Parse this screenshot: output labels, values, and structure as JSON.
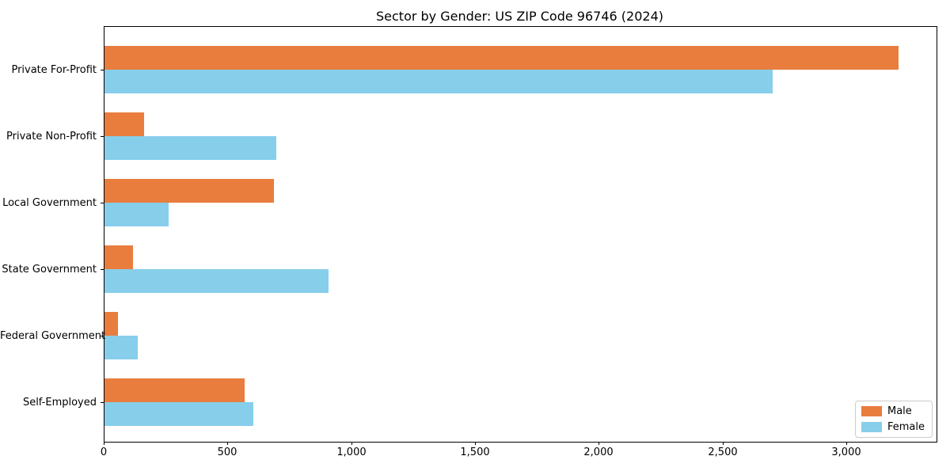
{
  "title": "Sector by Gender: US ZIP Code 96746 (2024)",
  "chart_data": {
    "type": "bar",
    "orientation": "horizontal",
    "title": "Sector by Gender: US ZIP Code 96746 (2024)",
    "xlabel": "",
    "ylabel": "",
    "categories": [
      "Private For-Profit",
      "Private Non-Profit",
      "Local Government",
      "State Government",
      "Federal Government",
      "Self-Employed"
    ],
    "series": [
      {
        "name": "Male",
        "color": "#e87d3e",
        "values": [
          3210,
          160,
          685,
          115,
          55,
          565
        ]
      },
      {
        "name": "Female",
        "color": "#87ceeb",
        "values": [
          2700,
          695,
          260,
          905,
          135,
          600
        ]
      }
    ],
    "xlim": [
      0,
      3362
    ],
    "xticks": [
      0,
      500,
      1000,
      1500,
      2000,
      2500,
      3000
    ],
    "xtick_labels": [
      "0",
      "500",
      "1,000",
      "1,500",
      "2,000",
      "2,500",
      "3,000"
    ],
    "grid": false,
    "legend_position": "lower right"
  },
  "legend": {
    "items": [
      {
        "label": "Male",
        "color": "#e87d3e"
      },
      {
        "label": "Female",
        "color": "#87ceeb"
      }
    ]
  }
}
